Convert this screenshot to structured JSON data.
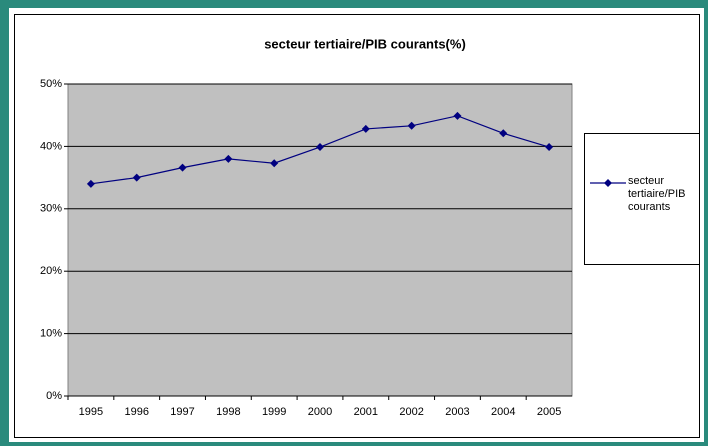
{
  "chart_data": {
    "type": "line",
    "title": "secteur tertiaire/PIB courants(%)",
    "categories": [
      "1995",
      "1996",
      "1997",
      "1998",
      "1999",
      "2000",
      "2001",
      "2002",
      "2003",
      "2004",
      "2005"
    ],
    "series": [
      {
        "name": "secteur tertiaire/PIB courants",
        "color": "#000080",
        "values": [
          34,
          35,
          36.6,
          38,
          37.3,
          39.9,
          42.8,
          43.3,
          44.9,
          42.1,
          39.9
        ]
      }
    ],
    "ylim": [
      0,
      50
    ],
    "yticks": [
      {
        "value": 0,
        "label": "0%"
      },
      {
        "value": 10,
        "label": "10%"
      },
      {
        "value": 20,
        "label": "20%"
      },
      {
        "value": 30,
        "label": "30%"
      },
      {
        "value": 40,
        "label": "40%"
      },
      {
        "value": 50,
        "label": "50%"
      }
    ],
    "grid": true,
    "legend": "right"
  }
}
